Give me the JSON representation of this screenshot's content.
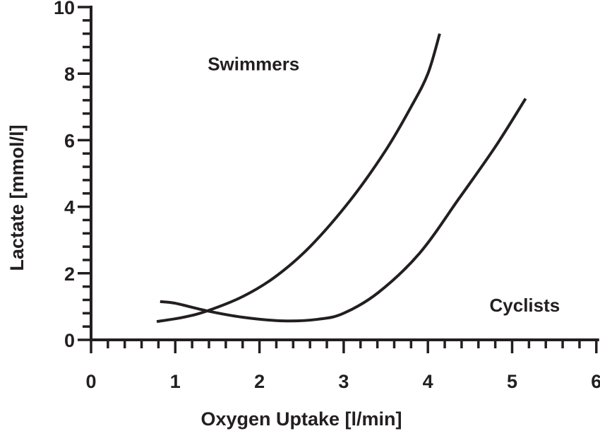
{
  "chart_data": {
    "type": "line",
    "title": "",
    "xlabel": "Oxygen Uptake [l/min]",
    "ylabel": "Lactate [mmol/l]",
    "xlim": [
      0,
      6
    ],
    "ylim": [
      0,
      10
    ],
    "xticks": [
      "0",
      "1",
      "2",
      "3",
      "4",
      "5",
      "6"
    ],
    "yticks": [
      "0",
      "2",
      "4",
      "6",
      "8",
      "10"
    ],
    "grid": false,
    "series": [
      {
        "name": "Swimmers",
        "x": [
          0.78,
          1.1,
          1.38,
          1.8,
          2.19,
          2.6,
          3.08,
          3.5,
          3.8,
          4.0,
          4.14
        ],
        "y": [
          0.55,
          0.68,
          0.87,
          1.3,
          1.9,
          2.8,
          4.2,
          5.7,
          7.0,
          8.0,
          9.2
        ]
      },
      {
        "name": "Cyclists",
        "x": [
          0.82,
          1.0,
          1.38,
          1.8,
          2.28,
          2.7,
          3.0,
          3.41,
          3.9,
          4.37,
          4.8,
          5.16
        ],
        "y": [
          1.15,
          1.1,
          0.87,
          0.68,
          0.57,
          0.62,
          0.8,
          1.42,
          2.6,
          4.25,
          5.8,
          7.25
        ]
      }
    ],
    "annotations": [
      {
        "text": "Swimmers",
        "x": 1.93,
        "y": 8.1
      },
      {
        "text": "Cyclists",
        "x": 5.15,
        "y": 0.85
      }
    ]
  }
}
